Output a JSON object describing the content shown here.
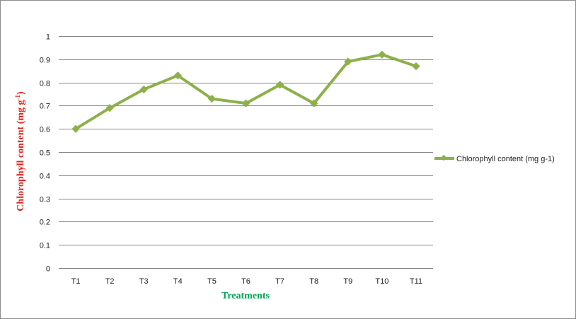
{
  "chart_data": {
    "type": "line",
    "categories": [
      "T1",
      "T2",
      "T3",
      "T4",
      "T5",
      "T6",
      "T7",
      "T8",
      "T9",
      "T10",
      "T11"
    ],
    "series": [
      {
        "name": "Chlorophyll content (mg g-1)",
        "values": [
          0.6,
          0.69,
          0.77,
          0.83,
          0.73,
          0.71,
          0.79,
          0.71,
          0.89,
          0.92,
          0.87
        ]
      }
    ],
    "xlabel": "Treatments",
    "ylabel_main": "Chlorophyll content (mg g",
    "ylabel_sup": "-1",
    "ylabel_end": ")",
    "ylim": [
      0,
      1
    ],
    "yticks": [
      "0",
      "0.1",
      "0.2",
      "0.3",
      "0.4",
      "0.5",
      "0.6",
      "0.7",
      "0.8",
      "0.9",
      "1"
    ],
    "grid": true,
    "legend_position": "right",
    "colors": {
      "series": "#8db04a",
      "grid": "#858585",
      "xlabel": "#00a651",
      "ylabel": "#e0201b"
    }
  }
}
